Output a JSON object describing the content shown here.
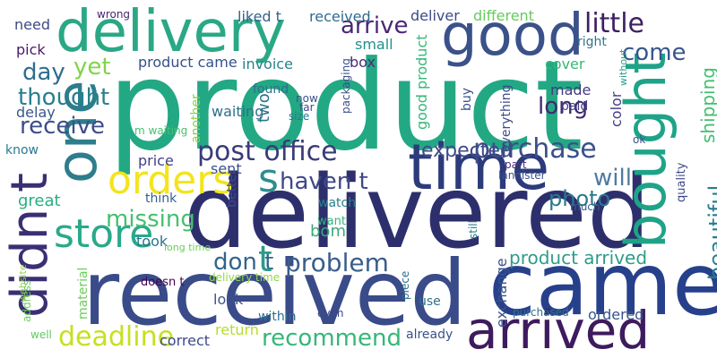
{
  "words": [
    {
      "text": "product",
      "color": "#23a884"
    },
    {
      "text": "delivered",
      "color": "#2d2f6d"
    },
    {
      "text": "received",
      "color": "#3a4b89"
    },
    {
      "text": "came",
      "color": "#27408c"
    },
    {
      "text": "delivery",
      "color": "#2aa886"
    },
    {
      "text": "time",
      "color": "#2c3b7a"
    },
    {
      "text": "good",
      "color": "#3b5189"
    },
    {
      "text": "one",
      "color": "#2d7d8c"
    },
    {
      "text": "didn t",
      "color": "#3a2f74"
    },
    {
      "text": "bought",
      "color": "#1fa388"
    },
    {
      "text": "arrived",
      "color": "#3e1b5e"
    },
    {
      "text": "orders",
      "color": "#f3e41d"
    },
    {
      "text": "store",
      "color": "#29a98a"
    },
    {
      "text": "post office",
      "color": "#3a3b79"
    },
    {
      "text": "purchase",
      "color": "#3b4f8a"
    },
    {
      "text": "problem",
      "color": "#3a5e8c"
    },
    {
      "text": "deadline",
      "color": "#c6e021"
    },
    {
      "text": "recommend",
      "color": "#35b779"
    },
    {
      "text": "missing",
      "color": "#46c06f"
    },
    {
      "text": "haven t",
      "color": "#3f4889"
    },
    {
      "text": "little",
      "color": "#3e1f64"
    },
    {
      "text": "arrive",
      "color": "#4a2676"
    },
    {
      "text": "thought",
      "color": "#277f8e"
    },
    {
      "text": "receive",
      "color": "#3d4d8a"
    },
    {
      "text": "day",
      "color": "#2e6e8e"
    },
    {
      "text": "yet",
      "color": "#82d34c"
    },
    {
      "text": "long",
      "color": "#3f2a70"
    },
    {
      "text": "come",
      "color": "#37558c"
    },
    {
      "text": "will",
      "color": "#4e7aa0"
    },
    {
      "text": "photo",
      "color": "#2a788e"
    },
    {
      "text": "don t",
      "color": "#31648d"
    },
    {
      "text": "expected",
      "color": "#3f4a8a"
    },
    {
      "text": "beautiful",
      "color": "#277c8e"
    },
    {
      "text": "shipping",
      "color": "#44bf70"
    },
    {
      "text": "product arrived",
      "color": "#2f9b8a"
    },
    {
      "text": "bom",
      "color": "#3ca879"
    },
    {
      "text": "s",
      "color": "#2b8e8c"
    },
    {
      "text": "t",
      "color": "#2c9a89"
    },
    {
      "text": "need",
      "color": "#3e4b89"
    },
    {
      "text": "wrong",
      "color": "#482374"
    },
    {
      "text": "liked t",
      "color": "#33638d"
    },
    {
      "text": "received",
      "color": "#2f6b8e"
    },
    {
      "text": "deliver",
      "color": "#3d4a89"
    },
    {
      "text": "different",
      "color": "#65cb5e"
    },
    {
      "text": "pick",
      "color": "#4a1a68"
    },
    {
      "text": "small",
      "color": "#22908c"
    },
    {
      "text": "right",
      "color": "#2f738e"
    },
    {
      "text": "product came",
      "color": "#34518c"
    },
    {
      "text": "invoice",
      "color": "#26828e"
    },
    {
      "text": "box",
      "color": "#472c7a"
    },
    {
      "text": "cover",
      "color": "#35b779"
    },
    {
      "text": "without",
      "color": "#2a9d89"
    },
    {
      "text": "found",
      "color": "#2c718e"
    },
    {
      "text": "made",
      "color": "#443a83"
    },
    {
      "text": "paid",
      "color": "#433e85"
    },
    {
      "text": "delay",
      "color": "#38588c"
    },
    {
      "text": "waiting",
      "color": "#2e6f8e"
    },
    {
      "text": "know",
      "color": "#297a8e"
    },
    {
      "text": "price",
      "color": "#424086"
    },
    {
      "text": "sent",
      "color": "#3b528b"
    },
    {
      "text": "great",
      "color": "#29af7f"
    },
    {
      "text": "took",
      "color": "#2b748e"
    },
    {
      "text": "think",
      "color": "#35608d"
    },
    {
      "text": "watch",
      "color": "#27808e"
    },
    {
      "text": "want",
      "color": "#31b57b"
    },
    {
      "text": "long time",
      "color": "#6ccd5a"
    },
    {
      "text": "delivery time",
      "color": "#8fd744"
    },
    {
      "text": "look",
      "color": "#3c508b"
    },
    {
      "text": "use",
      "color": "#2d718e"
    },
    {
      "text": "exchange",
      "color": "#3a548c"
    },
    {
      "text": "ordered",
      "color": "#3a538b"
    },
    {
      "text": "doesn t",
      "color": "#440154"
    },
    {
      "text": "website",
      "color": "#90d743"
    },
    {
      "text": "return",
      "color": "#b5de2b"
    },
    {
      "text": "correct",
      "color": "#3e4a89"
    },
    {
      "text": "already",
      "color": "#3b518b"
    },
    {
      "text": "within",
      "color": "#2e6e8e"
    },
    {
      "text": "even",
      "color": "#3e4989"
    },
    {
      "text": "purchased",
      "color": "#2e6f8e"
    },
    {
      "text": "material",
      "color": "#69cd5b"
    },
    {
      "text": "address",
      "color": "#6ece58"
    },
    {
      "text": "well",
      "color": "#5ec962"
    },
    {
      "text": "quality",
      "color": "#3f4788"
    },
    {
      "text": "color",
      "color": "#433d84"
    },
    {
      "text": "ok",
      "color": "#3b528b"
    },
    {
      "text": "better",
      "color": "#3f4a8a"
    },
    {
      "text": "lannister",
      "color": "#3b528b"
    },
    {
      "text": "piece",
      "color": "#2e6e8e"
    },
    {
      "text": "much",
      "color": "#355f8d"
    },
    {
      "text": "part",
      "color": "#472f7d"
    },
    {
      "text": "still",
      "color": "#2a788e"
    },
    {
      "text": "two",
      "color": "#2a768e"
    },
    {
      "text": "another",
      "color": "#84d44b"
    },
    {
      "text": "m waiting",
      "color": "#46c06f"
    },
    {
      "text": "packaging",
      "color": "#3d4d8a"
    },
    {
      "text": "good product",
      "color": "#35b779"
    },
    {
      "text": "everything",
      "color": "#3e4a89"
    },
    {
      "text": "buy",
      "color": "#3a548c"
    },
    {
      "text": "now",
      "color": "#3c4f8a"
    },
    {
      "text": "far",
      "color": "#414487"
    },
    {
      "text": "size",
      "color": "#2a788e"
    }
  ]
}
